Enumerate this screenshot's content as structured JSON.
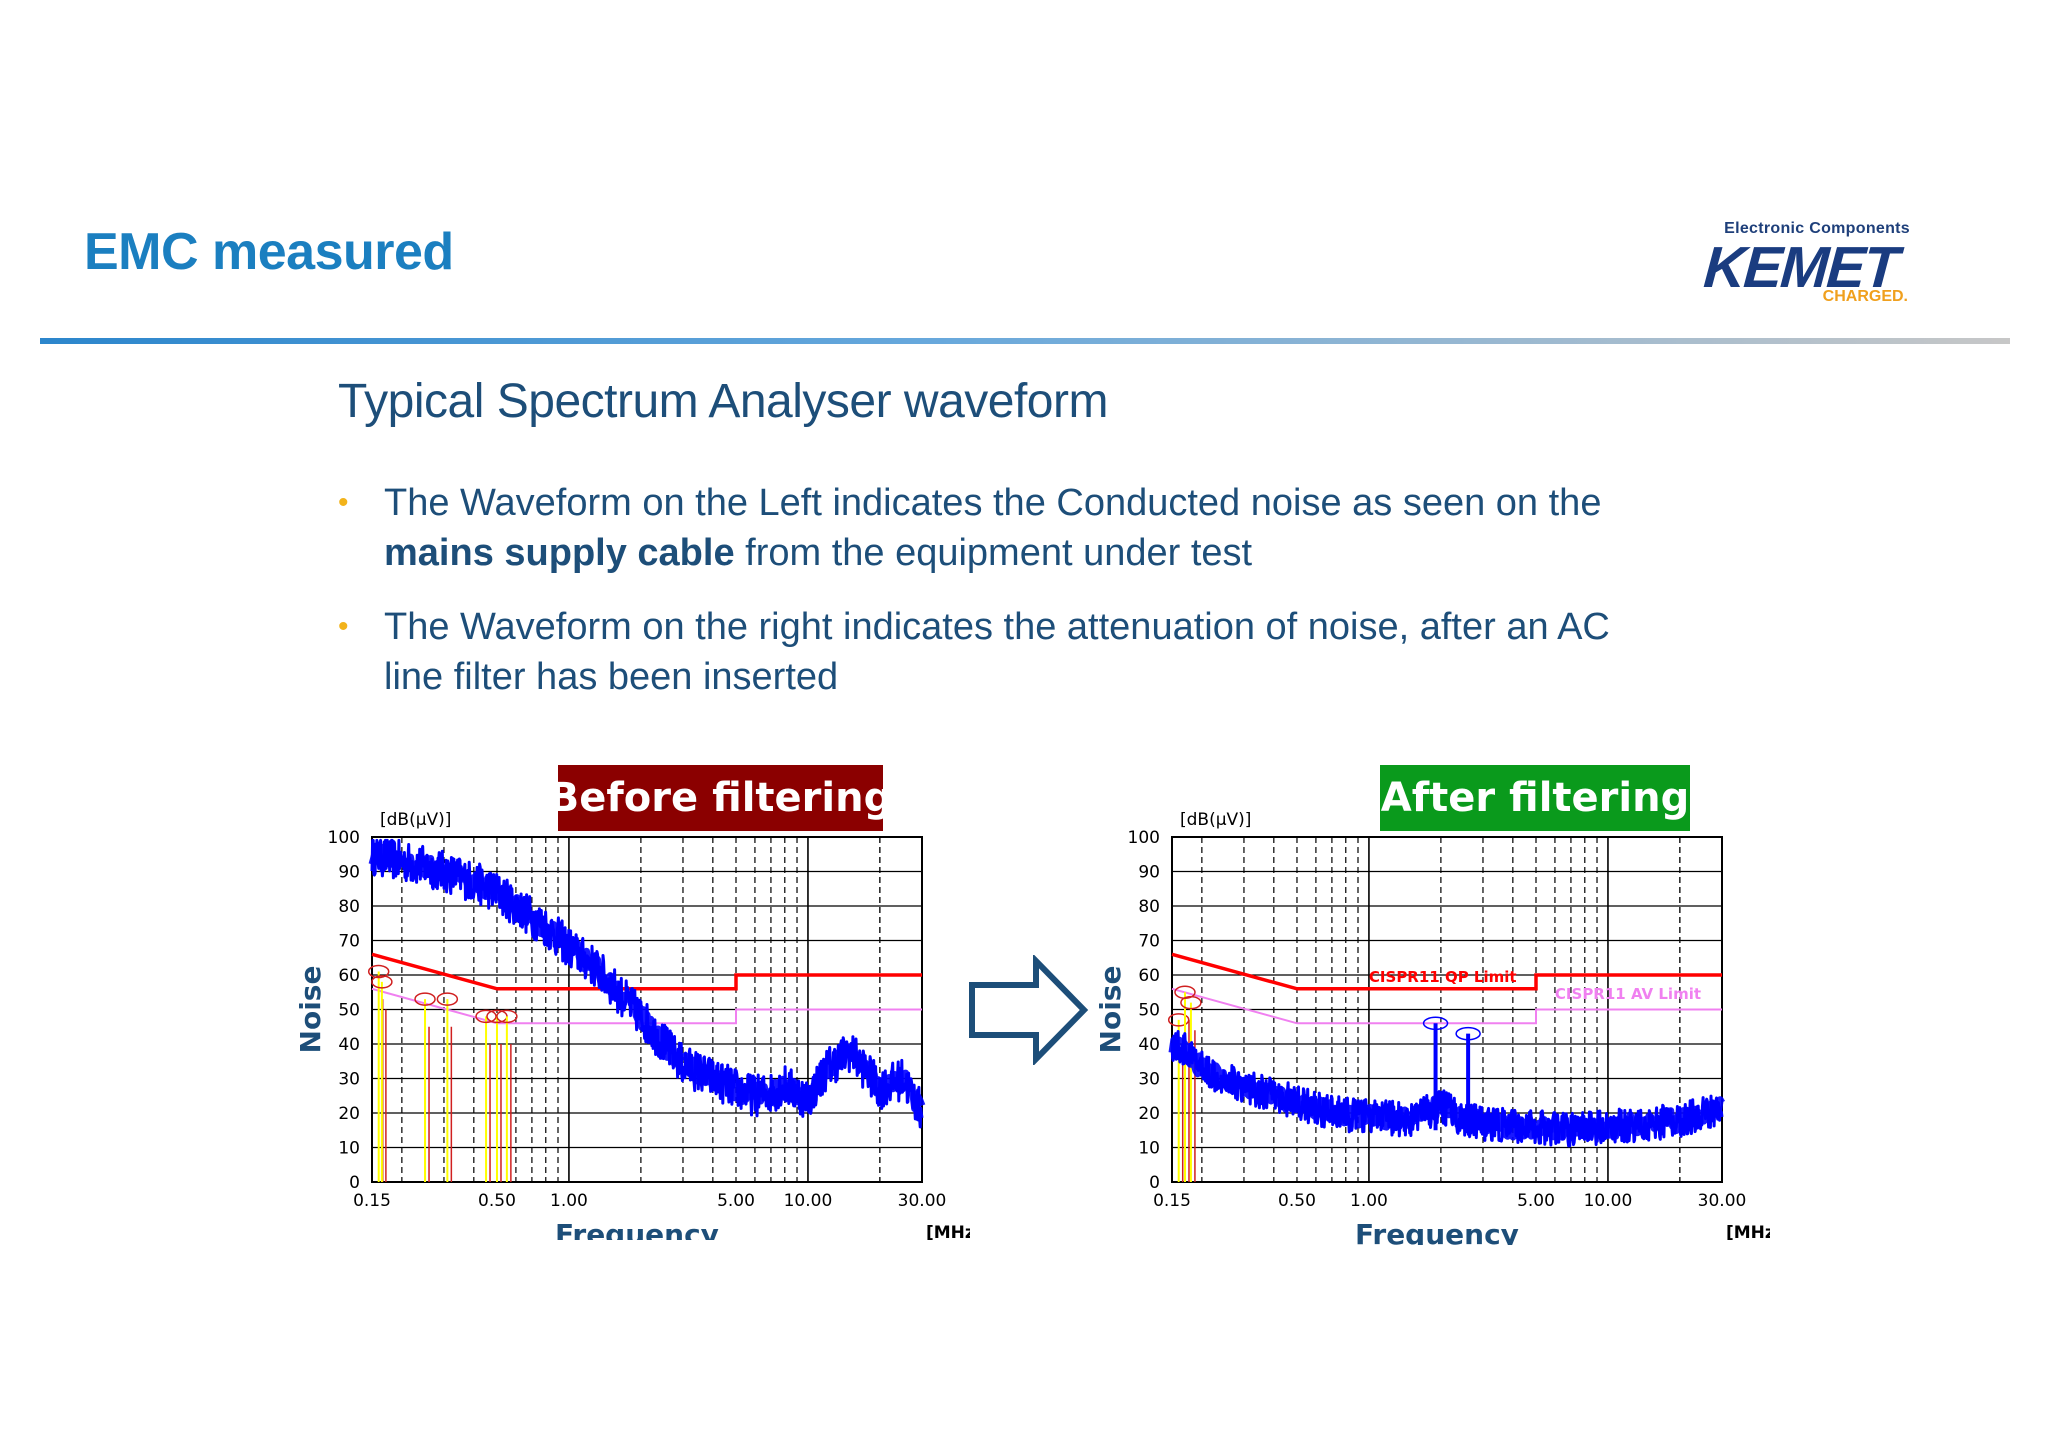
{
  "slide": {
    "title": "EMC measured",
    "subtitle": "Typical Spectrum Analyser waveform",
    "logo": {
      "tagline": "Electronic Components",
      "name": "KEMET",
      "charged": "CHARGED."
    },
    "bullets": [
      {
        "pre": "The Waveform on the Left indicates the Conducted noise as seen on the ",
        "bold": "mains supply cable",
        "post": " from the equipment under test"
      },
      {
        "pre": "The Waveform on the right indicates the attenuation of noise, after an AC line filter has been inserted",
        "bold": "",
        "post": ""
      }
    ],
    "colors": {
      "title": "#1b7fc0",
      "text": "#1d4e79",
      "bullet": "#f2b31b",
      "before_label_bg": "#8b0000",
      "after_label_bg": "#0a9a1c",
      "noise_trace": "#0000ff",
      "qp_limit": "#ff0000",
      "av_limit": "#f080f0",
      "markers": "#ffff00"
    },
    "arrow_icon": "right-arrow-icon"
  },
  "chart_data": [
    {
      "type": "line",
      "title": "Before filtering",
      "xlabel": "Frequency",
      "ylabel": "Noise",
      "y_unit": "[dB(μV)]",
      "x_unit": "[MHz]",
      "x_scale": "log",
      "xlim": [
        0.15,
        30
      ],
      "ylim": [
        0,
        100
      ],
      "x_ticks": [
        0.15,
        0.5,
        1,
        5,
        10,
        30
      ],
      "x_tick_labels": [
        "0.15",
        "0.50",
        "1.00",
        "5.00",
        "10.00",
        "30.00"
      ],
      "y_ticks": [
        0,
        10,
        20,
        30,
        40,
        50,
        60,
        70,
        80,
        90,
        100
      ],
      "grid": true,
      "series": [
        {
          "role": "noise",
          "x": [
            0.15,
            0.2,
            0.3,
            0.4,
            0.5,
            0.6,
            0.8,
            1.0,
            1.3,
            1.6,
            2.0,
            2.5,
            3.0,
            4.0,
            5.0,
            6.0,
            7.0,
            8.0,
            10.0,
            12.0,
            15.0,
            20.0,
            25.0,
            30.0
          ],
          "y": [
            95,
            93,
            90,
            87,
            84,
            80,
            74,
            68,
            62,
            55,
            48,
            40,
            34,
            30,
            27,
            25,
            26,
            28,
            24,
            33,
            38,
            27,
            30,
            20
          ]
        },
        {
          "role": "qp_limit",
          "x": [
            0.15,
            0.5,
            5.0,
            5.0,
            30.0
          ],
          "y": [
            66,
            56,
            56,
            60,
            60
          ]
        },
        {
          "role": "av_limit",
          "x": [
            0.15,
            0.5,
            5.0,
            5.0,
            30.0
          ],
          "y": [
            56,
            46,
            46,
            50,
            50
          ]
        }
      ],
      "markers": [
        {
          "x": 0.16,
          "y": 61
        },
        {
          "x": 0.165,
          "y": 58
        },
        {
          "x": 0.25,
          "y": 53
        },
        {
          "x": 0.31,
          "y": 53
        },
        {
          "x": 0.45,
          "y": 48
        },
        {
          "x": 0.5,
          "y": 48
        },
        {
          "x": 0.55,
          "y": 48
        }
      ],
      "annotations": []
    },
    {
      "type": "line",
      "title": "After filtering",
      "xlabel": "Frequency",
      "ylabel": "Noise",
      "y_unit": "[dB(μV)]",
      "x_unit": "[MHz]",
      "x_scale": "log",
      "xlim": [
        0.15,
        30
      ],
      "ylim": [
        0,
        100
      ],
      "x_ticks": [
        0.15,
        0.5,
        1,
        5,
        10,
        30
      ],
      "x_tick_labels": [
        "0.15",
        "0.50",
        "1.00",
        "5.00",
        "10.00",
        "30.00"
      ],
      "y_ticks": [
        0,
        10,
        20,
        30,
        40,
        50,
        60,
        70,
        80,
        90,
        100
      ],
      "grid": true,
      "series": [
        {
          "role": "noise",
          "x": [
            0.15,
            0.17,
            0.2,
            0.25,
            0.3,
            0.4,
            0.5,
            0.7,
            1.0,
            1.5,
            2.0,
            2.5,
            3.0,
            4.0,
            5.0,
            7.0,
            10.0,
            15.0,
            20.0,
            25.0,
            30.0
          ],
          "y": [
            40,
            38,
            33,
            30,
            28,
            25,
            23,
            20,
            19,
            18,
            22,
            18,
            17,
            16,
            16,
            15,
            16,
            17,
            18,
            20,
            22
          ]
        },
        {
          "role": "qp_limit",
          "x": [
            0.15,
            0.5,
            5.0,
            5.0,
            30.0
          ],
          "y": [
            66,
            56,
            56,
            60,
            60
          ]
        },
        {
          "role": "av_limit",
          "x": [
            0.15,
            0.5,
            5.0,
            5.0,
            30.0
          ],
          "y": [
            56,
            46,
            46,
            50,
            50
          ]
        }
      ],
      "markers": [
        {
          "x": 0.16,
          "y": 47
        },
        {
          "x": 0.17,
          "y": 55
        },
        {
          "x": 0.18,
          "y": 52
        }
      ],
      "spikes": [
        {
          "x": 1.9,
          "y": 46
        },
        {
          "x": 2.6,
          "y": 43
        }
      ],
      "annotations": [
        {
          "text": "CISPR11 QP Limit",
          "x": 1.0,
          "y": 58
        },
        {
          "text": "CISPR11 AV Limit",
          "x": 6.0,
          "y": 53
        }
      ]
    }
  ]
}
